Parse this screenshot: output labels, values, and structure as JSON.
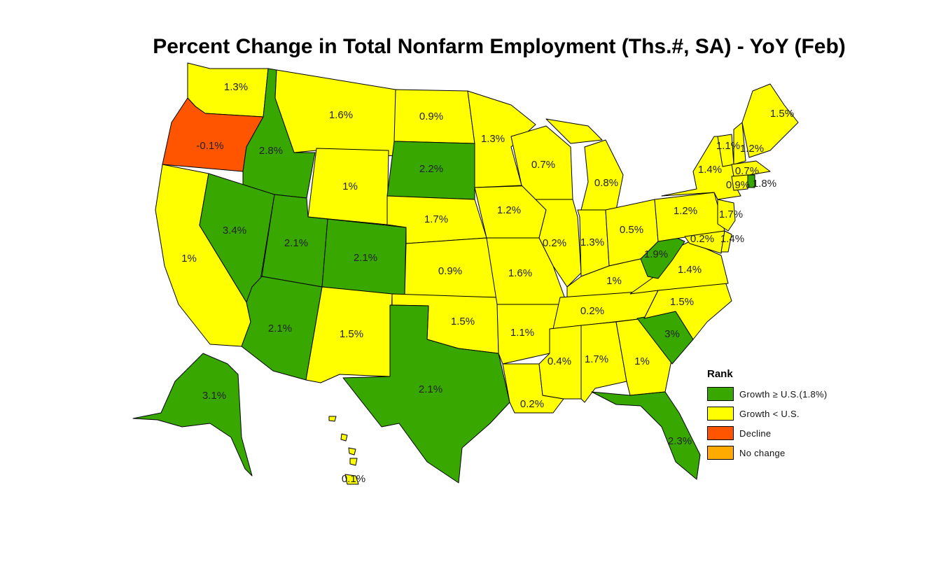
{
  "title": "Percent Change in Total Nonfarm Employment (Ths.#, SA) - YoY (Feb)",
  "colors": {
    "growth_above_us": "#38a800",
    "growth_below_us": "#ffff00",
    "decline": "#ff5500",
    "no_change": "#ffaa00"
  },
  "legend": {
    "title": "Rank",
    "items": [
      {
        "label": "Growth ≥ U.S.(1.8%)",
        "color": "#38a800"
      },
      {
        "label": "Growth < U.S.",
        "color": "#ffff00"
      },
      {
        "label": "Decline",
        "color": "#ff5500"
      },
      {
        "label": "No change",
        "color": "#ffaa00"
      }
    ]
  },
  "states": [
    {
      "id": "WA",
      "value": "1.3%",
      "category": "growth_below_us"
    },
    {
      "id": "OR",
      "value": "-0.1%",
      "category": "decline"
    },
    {
      "id": "ID",
      "value": "2.8%",
      "category": "growth_above_us"
    },
    {
      "id": "MT",
      "value": "1.6%",
      "category": "growth_below_us"
    },
    {
      "id": "ND",
      "value": "0.9%",
      "category": "growth_below_us"
    },
    {
      "id": "MN",
      "value": "1.3%",
      "category": "growth_below_us"
    },
    {
      "id": "WI",
      "value": "0.7%",
      "category": "growth_below_us"
    },
    {
      "id": "MI",
      "value": "0.8%",
      "category": "growth_below_us"
    },
    {
      "id": "NY",
      "value": "1.4%",
      "category": "growth_below_us"
    },
    {
      "id": "VT",
      "value": "1.1%",
      "category": "growth_below_us"
    },
    {
      "id": "NH",
      "value": "1.2%",
      "category": "growth_below_us"
    },
    {
      "id": "ME",
      "value": "1.5%",
      "category": "growth_below_us"
    },
    {
      "id": "MA",
      "value": "0.7%",
      "category": "growth_below_us"
    },
    {
      "id": "CT",
      "value": "0.9%",
      "category": "growth_below_us"
    },
    {
      "id": "RI",
      "value": "1.8%",
      "category": "growth_above_us"
    },
    {
      "id": "WY",
      "value": "1%",
      "category": "growth_below_us"
    },
    {
      "id": "SD",
      "value": "2.2%",
      "category": "growth_above_us"
    },
    {
      "id": "NE",
      "value": "1.7%",
      "category": "growth_below_us"
    },
    {
      "id": "IA",
      "value": "1.2%",
      "category": "growth_below_us"
    },
    {
      "id": "IL",
      "value": "0.2%",
      "category": "growth_below_us"
    },
    {
      "id": "IN",
      "value": "1.3%",
      "category": "growth_below_us"
    },
    {
      "id": "OH",
      "value": "0.5%",
      "category": "growth_below_us"
    },
    {
      "id": "PA",
      "value": "1.2%",
      "category": "growth_below_us"
    },
    {
      "id": "NJ",
      "value": "1.7%",
      "category": "growth_below_us"
    },
    {
      "id": "DE",
      "value": "1.4%",
      "category": "growth_below_us"
    },
    {
      "id": "MD",
      "value": "0.2%",
      "category": "growth_below_us"
    },
    {
      "id": "WV",
      "value": "1.9%",
      "category": "growth_above_us"
    },
    {
      "id": "VA",
      "value": "1.4%",
      "category": "growth_below_us"
    },
    {
      "id": "NV",
      "value": "3.4%",
      "category": "growth_above_us"
    },
    {
      "id": "UT",
      "value": "2.1%",
      "category": "growth_above_us"
    },
    {
      "id": "CO",
      "value": "2.1%",
      "category": "growth_above_us"
    },
    {
      "id": "KS",
      "value": "0.9%",
      "category": "growth_below_us"
    },
    {
      "id": "MO",
      "value": "1.6%",
      "category": "growth_below_us"
    },
    {
      "id": "KY",
      "value": "1%",
      "category": "growth_below_us"
    },
    {
      "id": "CA",
      "value": "1%",
      "category": "growth_below_us"
    },
    {
      "id": "AZ",
      "value": "2.1%",
      "category": "growth_above_us"
    },
    {
      "id": "NM",
      "value": "1.5%",
      "category": "growth_below_us"
    },
    {
      "id": "OK",
      "value": "1.5%",
      "category": "growth_below_us"
    },
    {
      "id": "AR",
      "value": "1.1%",
      "category": "growth_below_us"
    },
    {
      "id": "TN",
      "value": "0.2%",
      "category": "growth_below_us"
    },
    {
      "id": "NC",
      "value": "1.5%",
      "category": "growth_below_us"
    },
    {
      "id": "SC",
      "value": "3%",
      "category": "growth_above_us"
    },
    {
      "id": "TX",
      "value": "2.1%",
      "category": "growth_above_us"
    },
    {
      "id": "LA",
      "value": "0.2%",
      "category": "growth_below_us"
    },
    {
      "id": "MS",
      "value": "0.4%",
      "category": "growth_below_us"
    },
    {
      "id": "AL",
      "value": "1.7%",
      "category": "growth_below_us"
    },
    {
      "id": "GA",
      "value": "1%",
      "category": "growth_below_us"
    },
    {
      "id": "FL",
      "value": "2.3%",
      "category": "growth_above_us"
    },
    {
      "id": "AK",
      "value": "3.1%",
      "category": "growth_above_us"
    },
    {
      "id": "HI",
      "value": "0.1%",
      "category": "growth_below_us"
    }
  ]
}
